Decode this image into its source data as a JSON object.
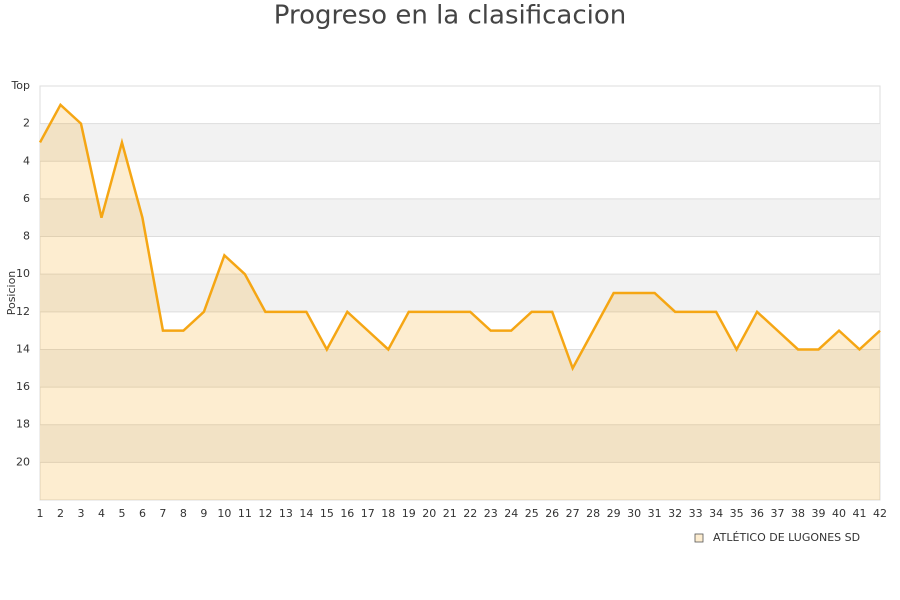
{
  "chart_data": {
    "type": "line",
    "title": "Progreso en la clasificacion",
    "y_label": "Posicion",
    "x": [
      1,
      2,
      3,
      4,
      5,
      6,
      7,
      8,
      9,
      10,
      11,
      12,
      13,
      14,
      15,
      16,
      17,
      18,
      19,
      20,
      21,
      22,
      23,
      24,
      25,
      26,
      27,
      28,
      29,
      30,
      31,
      32,
      33,
      34,
      35,
      36,
      37,
      38,
      39,
      40,
      41,
      42
    ],
    "xlim": [
      1,
      42
    ],
    "xticks": [
      1,
      2,
      3,
      4,
      5,
      6,
      7,
      8,
      9,
      10,
      11,
      12,
      13,
      14,
      15,
      16,
      17,
      18,
      19,
      20,
      21,
      22,
      23,
      24,
      25,
      26,
      27,
      28,
      29,
      30,
      31,
      32,
      33,
      34,
      35,
      36,
      37,
      38,
      39,
      40,
      41,
      42
    ],
    "ylim": [
      0,
      22
    ],
    "y_inverted": true,
    "yticks": [
      {
        "value": 0,
        "label": "Top"
      },
      2,
      4,
      6,
      8,
      10,
      12,
      14,
      16,
      18,
      20
    ],
    "grid": true,
    "area": true,
    "legend": "bottom-right",
    "series": [
      {
        "name": "ATLÉTICO DE LUGONES SD",
        "color": "#f5a614",
        "values": [
          3,
          1,
          2,
          7,
          3,
          7,
          13,
          13,
          12,
          9,
          10,
          12,
          12,
          12,
          14,
          12,
          13,
          14,
          12,
          12,
          12,
          12,
          13,
          13,
          12,
          12,
          15,
          13,
          11,
          11,
          11,
          12,
          12,
          12,
          14,
          12,
          13,
          14,
          14,
          13,
          14,
          13
        ]
      }
    ]
  }
}
